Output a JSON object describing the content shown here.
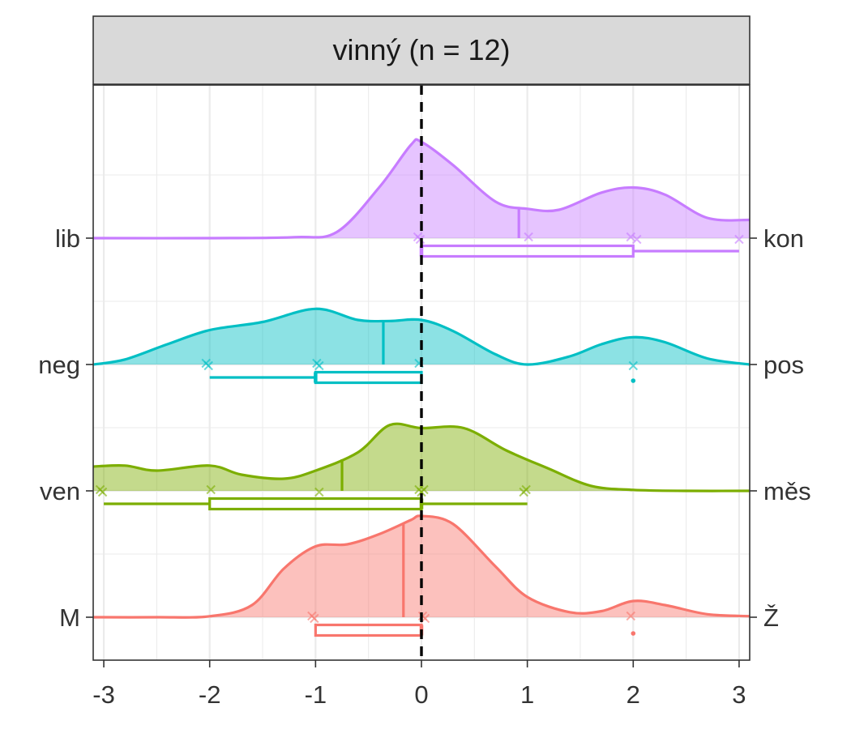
{
  "chart_data": {
    "type": "ridgeline",
    "title": "",
    "panel_title": "vinný (n = 12)",
    "xlabel": "",
    "ylabel": "",
    "xlim": [
      -3.1,
      3.1
    ],
    "x_ticks": [
      -3,
      -2,
      -1,
      0,
      1,
      2,
      3
    ],
    "x_tick_labels": [
      "-3",
      "-2",
      "-1",
      "0",
      "1",
      "2",
      "3"
    ],
    "reference_line_x": 0,
    "grid": true,
    "legend": "none",
    "series": [
      {
        "left_label": "M",
        "right_label": "Ž",
        "color": "#F8766D",
        "mean": -0.17,
        "points": [
          -1,
          -1,
          0,
          0,
          2
        ],
        "box": {
          "q1": -1,
          "median": 0,
          "q3": 0,
          "whisker_low": -1,
          "whisker_high": 0
        },
        "outliers": [
          2
        ],
        "density": [
          [
            -3.1,
            0.0
          ],
          [
            -2.5,
            0.0
          ],
          [
            -2.0,
            0.01
          ],
          [
            -1.6,
            0.12
          ],
          [
            -1.3,
            0.48
          ],
          [
            -1.0,
            0.7
          ],
          [
            -0.7,
            0.72
          ],
          [
            -0.4,
            0.82
          ],
          [
            -0.1,
            0.96
          ],
          [
            0.0,
            1.0
          ],
          [
            0.3,
            0.92
          ],
          [
            0.7,
            0.5
          ],
          [
            1.0,
            0.2
          ],
          [
            1.4,
            0.05
          ],
          [
            1.7,
            0.06
          ],
          [
            2.0,
            0.16
          ],
          [
            2.3,
            0.12
          ],
          [
            2.7,
            0.03
          ],
          [
            3.1,
            0.01
          ]
        ]
      },
      {
        "left_label": "ven",
        "right_label": "měs",
        "color": "#7CAE00",
        "mean": -0.75,
        "points": [
          -3,
          -3,
          -2,
          -1,
          0,
          0,
          0,
          1,
          1
        ],
        "box": {
          "q1": -2,
          "median": 0,
          "q3": 0,
          "whisker_low": -3,
          "whisker_high": 1
        },
        "outliers": [],
        "density": [
          [
            -3.1,
            0.24
          ],
          [
            -2.8,
            0.25
          ],
          [
            -2.5,
            0.2
          ],
          [
            -2.0,
            0.25
          ],
          [
            -1.7,
            0.16
          ],
          [
            -1.3,
            0.12
          ],
          [
            -1.0,
            0.2
          ],
          [
            -0.6,
            0.38
          ],
          [
            -0.3,
            0.65
          ],
          [
            0.0,
            0.62
          ],
          [
            0.4,
            0.62
          ],
          [
            0.8,
            0.4
          ],
          [
            1.2,
            0.22
          ],
          [
            1.6,
            0.05
          ],
          [
            2.0,
            0.01
          ],
          [
            2.5,
            0.0
          ],
          [
            3.1,
            0.0
          ]
        ]
      },
      {
        "left_label": "neg",
        "right_label": "pos",
        "color": "#00BFC4",
        "mean": -0.36,
        "points": [
          -2,
          -2,
          -1,
          -1,
          0,
          2
        ],
        "box": {
          "q1": -1,
          "median": -1,
          "q3": 0,
          "whisker_low": -2,
          "whisker_high": 0
        },
        "outliers": [
          2
        ],
        "density": [
          [
            -3.1,
            0.0
          ],
          [
            -2.8,
            0.05
          ],
          [
            -2.4,
            0.2
          ],
          [
            -2.0,
            0.34
          ],
          [
            -1.5,
            0.42
          ],
          [
            -1.0,
            0.55
          ],
          [
            -0.6,
            0.44
          ],
          [
            -0.3,
            0.43
          ],
          [
            0.0,
            0.44
          ],
          [
            0.3,
            0.33
          ],
          [
            0.7,
            0.1
          ],
          [
            1.0,
            0.0
          ],
          [
            1.4,
            0.08
          ],
          [
            1.7,
            0.2
          ],
          [
            2.0,
            0.27
          ],
          [
            2.3,
            0.22
          ],
          [
            2.7,
            0.06
          ],
          [
            3.1,
            0.0
          ]
        ]
      },
      {
        "left_label": "lib",
        "right_label": "kon",
        "color": "#C77CFF",
        "mean": 0.92,
        "points": [
          0,
          0,
          1,
          2,
          2,
          3
        ],
        "box": {
          "q1": 0,
          "median": 0,
          "q3": 2,
          "whisker_low": 0,
          "whisker_high": 3
        },
        "outliers": [],
        "density": [
          [
            -3.1,
            0.0
          ],
          [
            -2.0,
            0.0
          ],
          [
            -1.2,
            0.01
          ],
          [
            -0.8,
            0.06
          ],
          [
            -0.4,
            0.5
          ],
          [
            -0.1,
            0.92
          ],
          [
            0.0,
            0.95
          ],
          [
            0.3,
            0.72
          ],
          [
            0.7,
            0.36
          ],
          [
            1.0,
            0.29
          ],
          [
            1.3,
            0.28
          ],
          [
            1.7,
            0.45
          ],
          [
            2.0,
            0.5
          ],
          [
            2.3,
            0.43
          ],
          [
            2.7,
            0.2
          ],
          [
            3.1,
            0.18
          ]
        ]
      }
    ]
  }
}
